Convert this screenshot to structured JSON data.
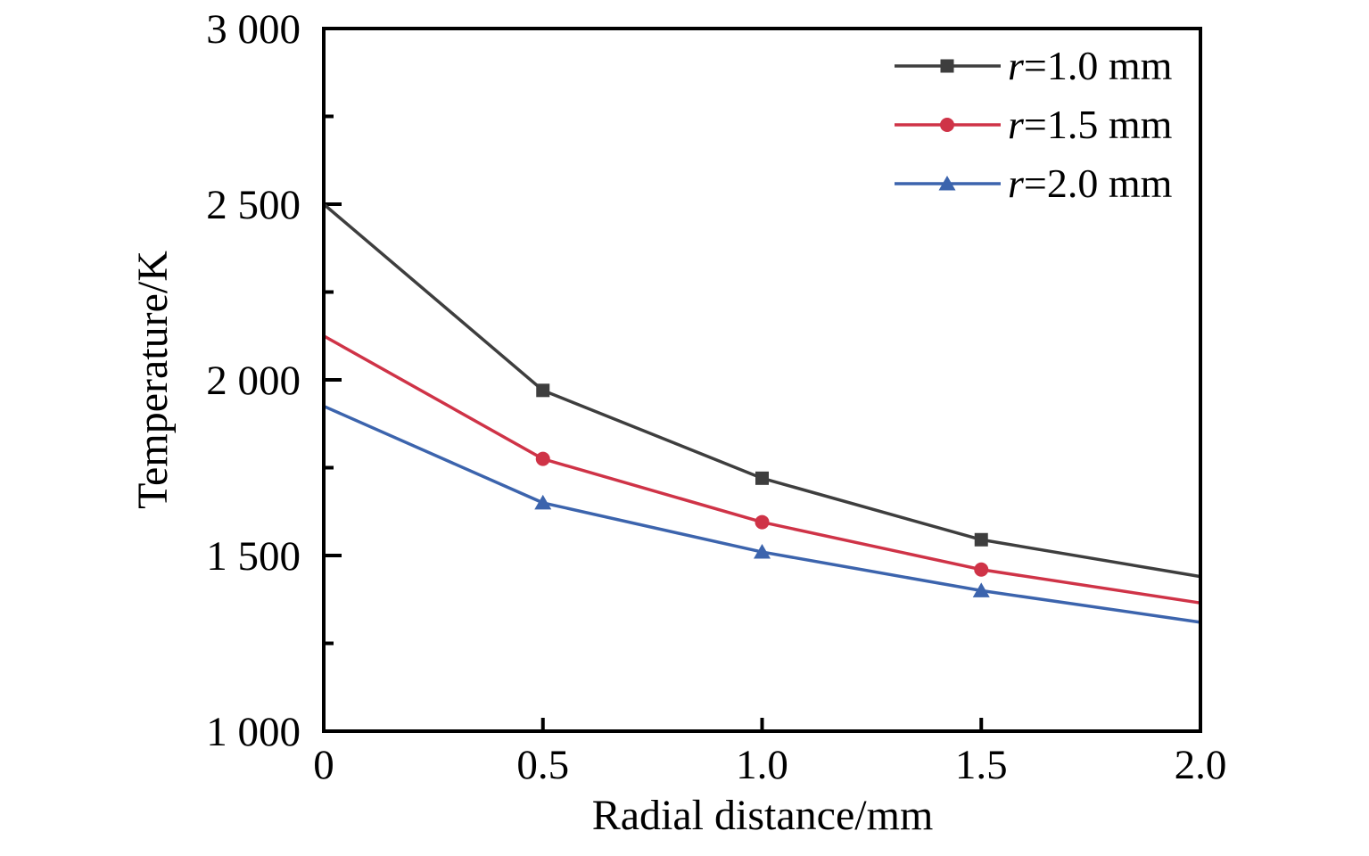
{
  "chart_data": {
    "type": "line",
    "title": "",
    "xlabel": "Radial distance/mm",
    "ylabel": "Temperature/K",
    "xlim": [
      0,
      2.0
    ],
    "ylim": [
      1000,
      3000
    ],
    "grid": false,
    "legend_position": "top-right-inside",
    "x": [
      0,
      0.5,
      1.0,
      1.5,
      2.0
    ],
    "x_tick_values": [
      0,
      0.5,
      1.0,
      1.5,
      2.0
    ],
    "x_tick_labels": [
      "0",
      "0.5",
      "1.0",
      "1.5",
      "2.0"
    ],
    "y_tick_values": [
      1000,
      1500,
      2000,
      2500,
      3000
    ],
    "y_tick_labels": [
      "1 000",
      "1 500",
      "2 000",
      "2 500",
      "3 000"
    ],
    "y_minor_tick_values": [
      1250,
      1750,
      2250,
      2750
    ],
    "series": [
      {
        "name": "r=1.0 mm",
        "label_italic": "r",
        "label_rest": "=1.0 mm",
        "color": "#3e3e3e",
        "marker": "square",
        "values": [
          2500,
          1970,
          1720,
          1545,
          1440
        ]
      },
      {
        "name": "r=1.5 mm",
        "label_italic": "r",
        "label_rest": "=1.5 mm",
        "color": "#cf3347",
        "marker": "circle",
        "values": [
          2125,
          1775,
          1595,
          1460,
          1365
        ]
      },
      {
        "name": "r=2.0 mm",
        "label_italic": "r",
        "label_rest": "=2.0 mm",
        "color": "#3c64ad",
        "marker": "triangle",
        "values": [
          1925,
          1650,
          1510,
          1400,
          1310
        ]
      }
    ],
    "axis_color": "#000000",
    "background": "#ffffff",
    "markers_shown_at_interior_points_only": true
  }
}
